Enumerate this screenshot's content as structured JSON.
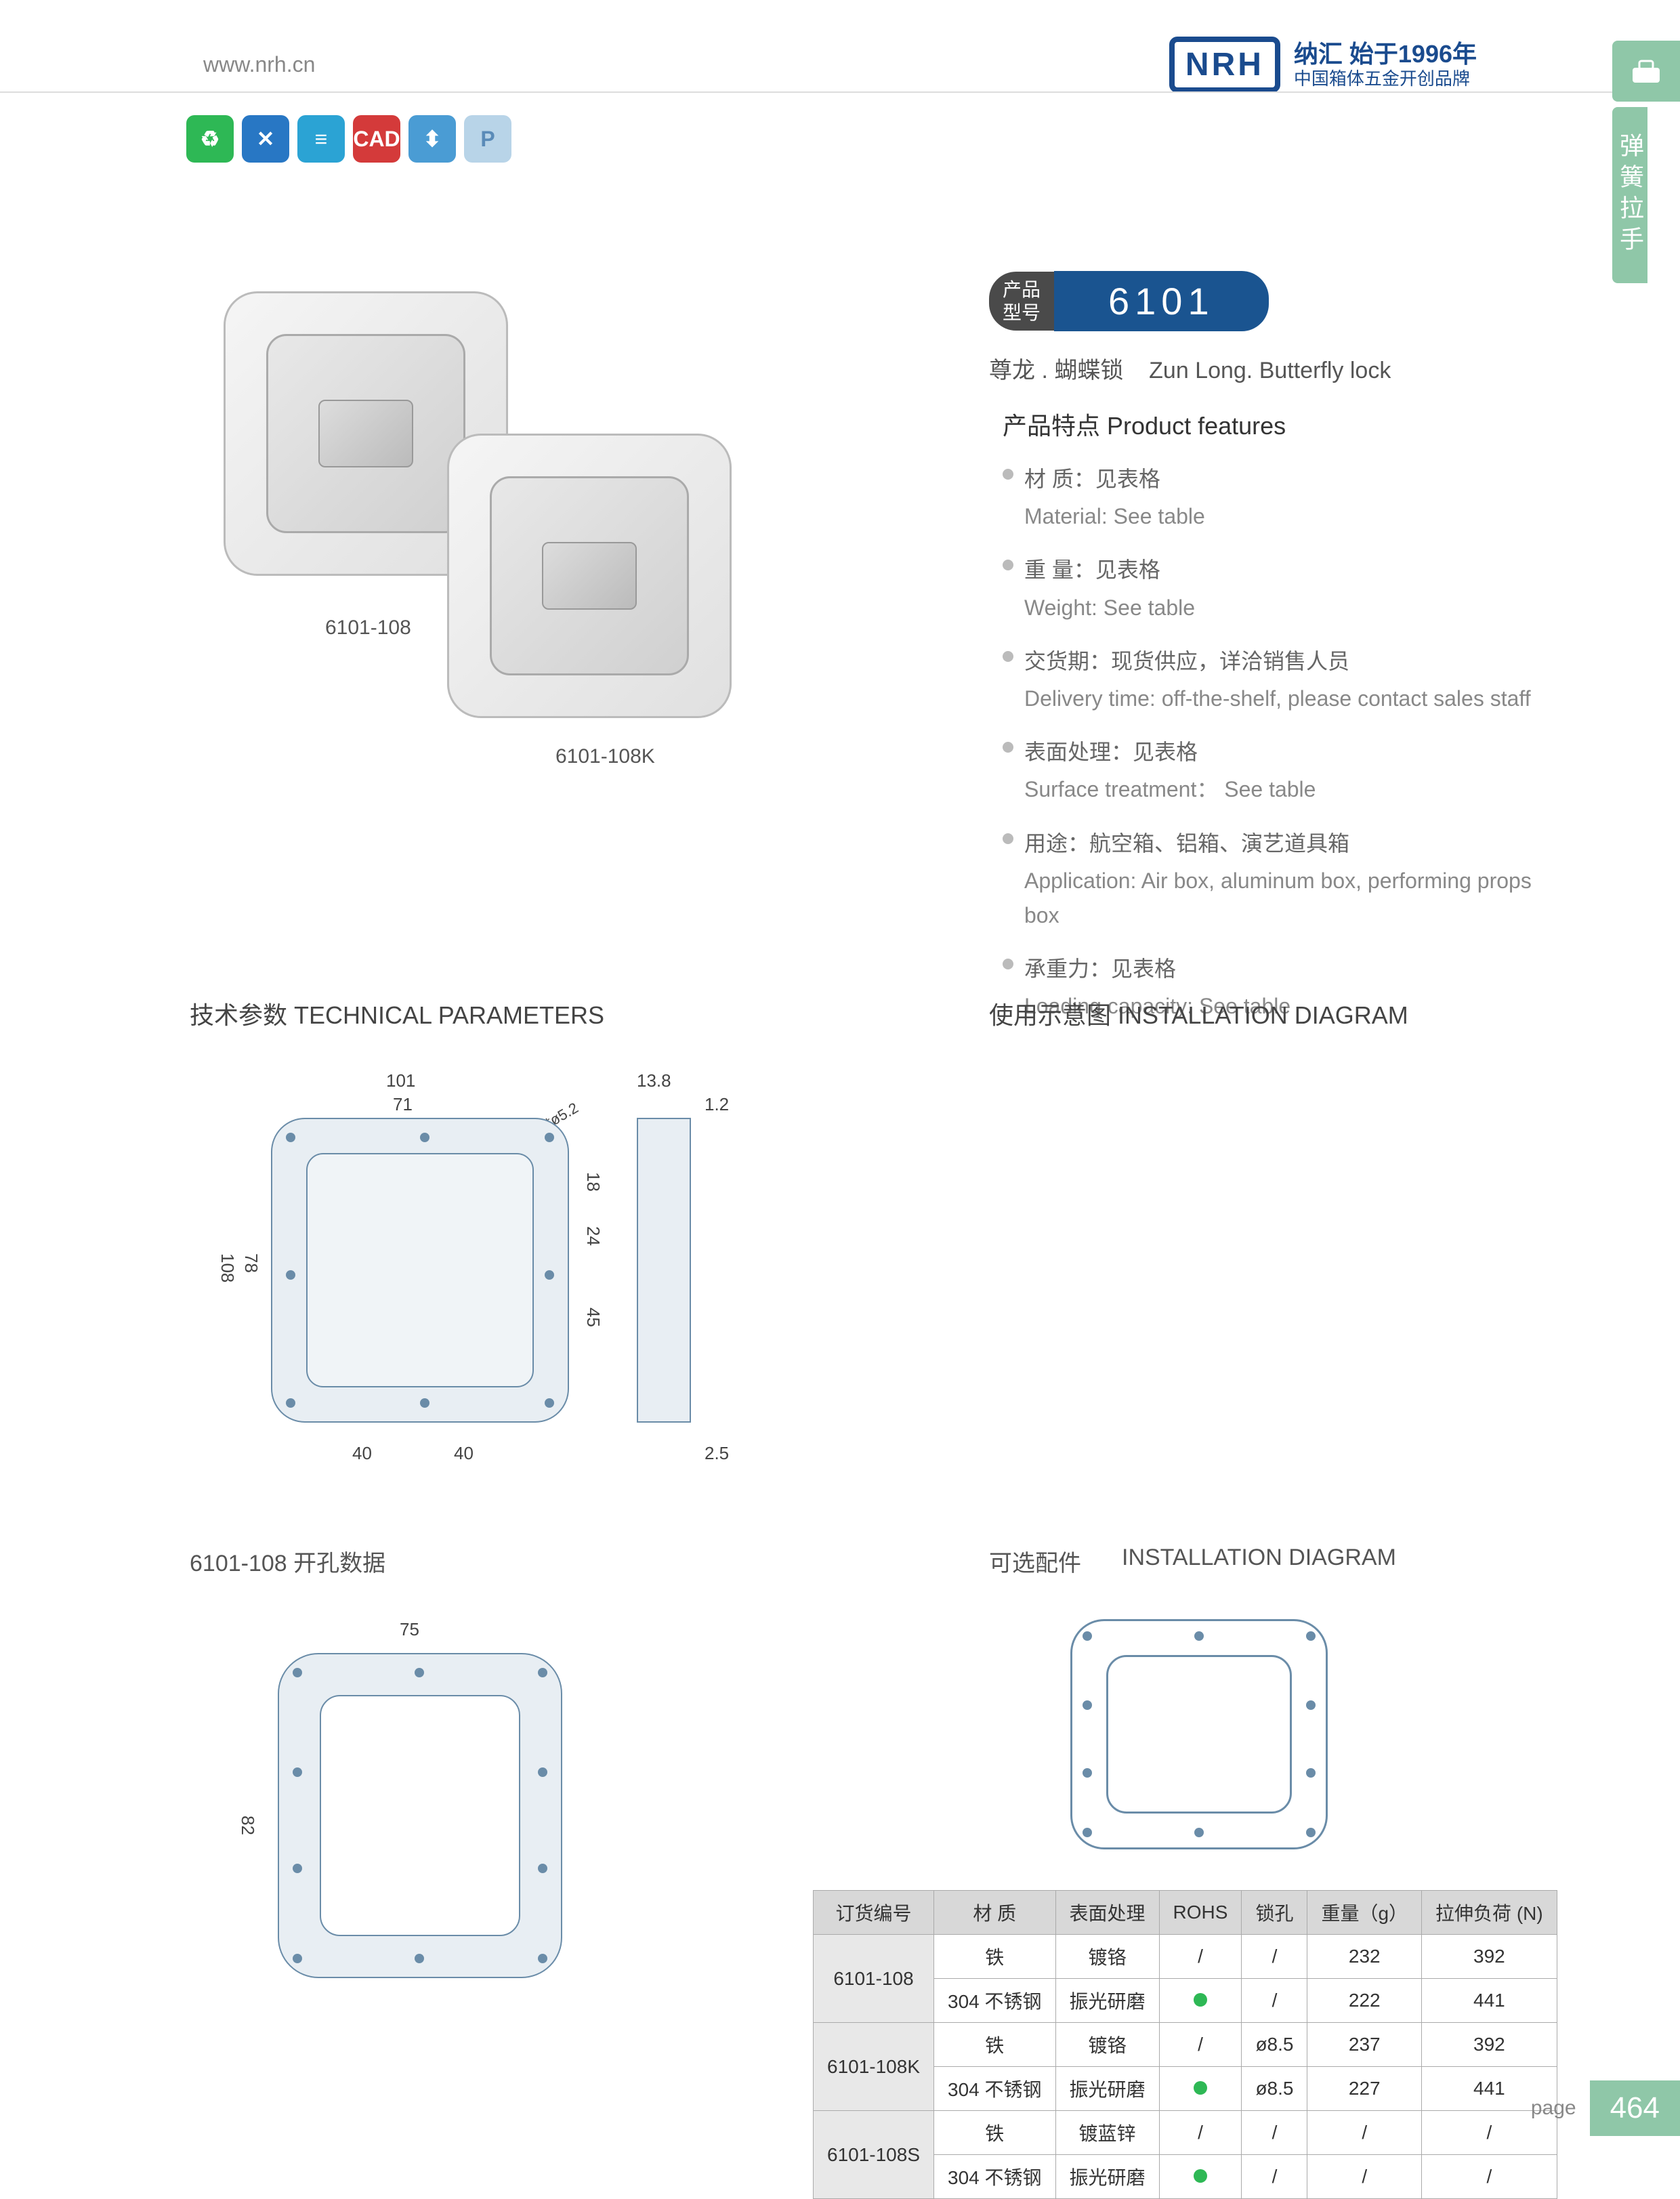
{
  "header": {
    "url": "www.nrh.cn",
    "brand": "NRH",
    "tagline1": "纳汇 始于1996年",
    "tagline2": "中国箱体五金开创品牌"
  },
  "sideTab": {
    "label": "弹簧拉手"
  },
  "icons": [
    "♻",
    "✕",
    "≡",
    "CAD",
    "⬍",
    "P"
  ],
  "productImages": {
    "label1": "6101-108",
    "label2": "6101-108K"
  },
  "model": {
    "prefix": "产品\n型号",
    "number": "6101",
    "nameCn": "尊龙 . 蝴蝶锁",
    "nameEn": "Zun Long. Butterfly lock"
  },
  "features": {
    "title": "产品特点  Product features",
    "items": [
      {
        "cn": "材    质：见表格",
        "en": "Material: See table"
      },
      {
        "cn": "重    量：见表格",
        "en": "Weight: See table"
      },
      {
        "cn": "交货期：现货供应，详洽销售人员",
        "en": "Delivery time: off-the-shelf, please contact sales staff"
      },
      {
        "cn": "表面处理：见表格",
        "en": "Surface treatment： See table"
      },
      {
        "cn": "用途：航空箱、铝箱、演艺道具箱",
        "en": "Application: Air box, aluminum box, performing props box"
      },
      {
        "cn": "承重力：见表格",
        "en": "Loading capacity: See table"
      }
    ]
  },
  "sections": {
    "tech": "技术参数    TECHNICAL PARAMETERS",
    "install": "使用示意图   INSTALLATION DIAGRAM",
    "hole": "6101-108 开孔数据",
    "accessory": "可选配件",
    "accessoryEn": "INSTALLATION DIAGRAM"
  },
  "dimensions": {
    "d101": "101",
    "d71": "71",
    "d108": "108",
    "d78": "78",
    "d40a": "40",
    "d40b": "40",
    "d138": "13.8",
    "d12": "1.2",
    "d25": "2.5",
    "d18": "18",
    "d24": "24",
    "d45": "45",
    "holes": "10*ø5.2",
    "d75": "75",
    "d82": "82"
  },
  "table": {
    "headers": [
      "订货编号",
      "材    质",
      "表面处理",
      "ROHS",
      "锁孔",
      "重量（g）",
      "拉伸负荷 (N)"
    ],
    "rows": [
      {
        "model": "6101-108",
        "r": [
          [
            "铁",
            "镀铬",
            "/",
            "/",
            "232",
            "392"
          ],
          [
            "304 不锈钢",
            "振光研磨",
            "●",
            "/",
            "222",
            "441"
          ]
        ]
      },
      {
        "model": "6101-108K",
        "r": [
          [
            "铁",
            "镀铬",
            "/",
            "ø8.5",
            "237",
            "392"
          ],
          [
            "304 不锈钢",
            "振光研磨",
            "●",
            "ø8.5",
            "227",
            "441"
          ]
        ]
      },
      {
        "model": "6101-108S",
        "r": [
          [
            "铁",
            "镀蓝锌",
            "/",
            "/",
            "/",
            "/"
          ],
          [
            "304 不锈钢",
            "振光研磨",
            "●",
            "/",
            "/",
            "/"
          ]
        ]
      }
    ]
  },
  "footer": {
    "label": "page",
    "number": "464"
  }
}
